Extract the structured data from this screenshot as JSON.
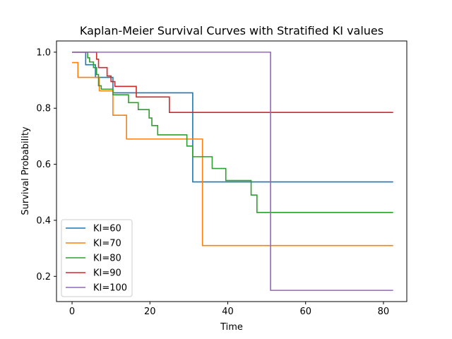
{
  "chart_data": {
    "type": "line",
    "title": "Kaplan-Meier Survival Curves with Stratified KI values",
    "xlabel": "Time",
    "ylabel": "Survival Probability",
    "xlim": [
      -4,
      86
    ],
    "ylim": [
      0.11,
      1.04
    ],
    "x_ticks": [
      0,
      20,
      40,
      60,
      80
    ],
    "y_ticks": [
      0.2,
      0.4,
      0.6,
      0.8,
      1.0
    ],
    "x_tick_labels": [
      "0",
      "20",
      "40",
      "60",
      "80"
    ],
    "y_tick_labels": [
      "0.2",
      "0.4",
      "0.6",
      "0.8",
      "1.0"
    ],
    "grid": false,
    "legend_position": "lower-left",
    "step": "post",
    "series": [
      {
        "name": "KI=60",
        "color": "#1f77b4",
        "points": [
          [
            0,
            1.0
          ],
          [
            3.5,
            0.955
          ],
          [
            6,
            0.91
          ],
          [
            10.5,
            0.855
          ],
          [
            31,
            0.537
          ],
          [
            82.5,
            0.537
          ]
        ]
      },
      {
        "name": "KI=70",
        "color": "#ff7f0e",
        "points": [
          [
            0,
            0.963
          ],
          [
            1.5,
            0.91
          ],
          [
            7,
            0.862
          ],
          [
            10.5,
            0.775
          ],
          [
            14,
            0.69
          ],
          [
            33.5,
            0.31
          ],
          [
            82.5,
            0.31
          ]
        ]
      },
      {
        "name": "KI=80",
        "color": "#2ca02c",
        "points": [
          [
            0,
            1.0
          ],
          [
            4,
            0.98
          ],
          [
            4.5,
            0.965
          ],
          [
            5.5,
            0.945
          ],
          [
            6.3,
            0.92
          ],
          [
            6.8,
            0.88
          ],
          [
            7.5,
            0.868
          ],
          [
            10.5,
            0.848
          ],
          [
            14.5,
            0.82
          ],
          [
            17,
            0.795
          ],
          [
            19.8,
            0.765
          ],
          [
            20.5,
            0.738
          ],
          [
            22,
            0.705
          ],
          [
            29.5,
            0.665
          ],
          [
            31,
            0.627
          ],
          [
            36,
            0.585
          ],
          [
            39.5,
            0.542
          ],
          [
            46,
            0.49
          ],
          [
            47.5,
            0.428
          ],
          [
            82.5,
            0.428
          ]
        ]
      },
      {
        "name": "KI=90",
        "color": "#d62728",
        "points": [
          [
            0,
            1.0
          ],
          [
            6.3,
            0.975
          ],
          [
            6.8,
            0.945
          ],
          [
            9,
            0.915
          ],
          [
            10,
            0.895
          ],
          [
            11,
            0.878
          ],
          [
            16.5,
            0.84
          ],
          [
            25,
            0.785
          ],
          [
            82.5,
            0.785
          ]
        ]
      },
      {
        "name": "KI=100",
        "color": "#9467bd",
        "points": [
          [
            0,
            1.0
          ],
          [
            51,
            0.15
          ],
          [
            82.5,
            0.15
          ]
        ]
      }
    ]
  }
}
